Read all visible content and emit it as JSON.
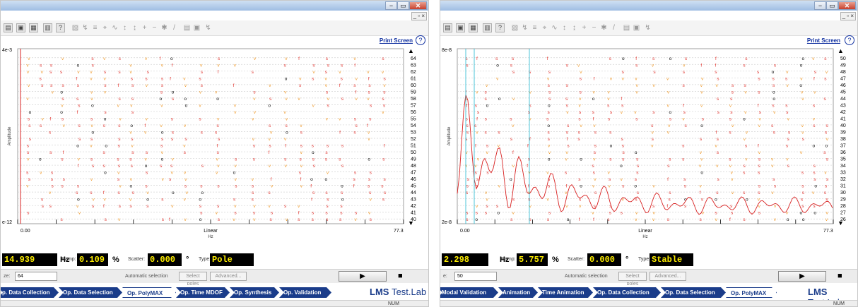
{
  "colors": {
    "stable": "#e0302a",
    "v": "#f09a2a",
    "o": "#000000",
    "fn_line": "#d82020",
    "cursor": "#20b8d0",
    "tab": "#1a3c8a",
    "accent": "#ffee00"
  },
  "left": {
    "window": {
      "minimize": "−",
      "maximize": "▭",
      "close": "✕",
      "mdi": "_ ▫ ×"
    },
    "toolbar": {
      "icons": [
        "open-icon",
        "print-preview-icon",
        "print-icon",
        "copy-icon",
        "help-icon"
      ],
      "disabled_icons": [
        "cursor-icon",
        "zoom-icon",
        "legend-icon",
        "measure-icon",
        "peak-icon",
        "marker-icon",
        "scale-icon",
        "plus-icon",
        "minus-icon",
        "star-icon",
        "line-icon",
        "table-icon",
        "save-icon",
        "flash-icon"
      ]
    },
    "print_screen": "Print Screen",
    "help": "?",
    "y_top": "4e-3",
    "y_bottom": "e-12",
    "y_axis_label": "Amplitude",
    "x_min": "0.00",
    "x_max": "77.3",
    "x_scale": "Linear",
    "x_unit": "Hz",
    "freq_value": "14.939",
    "freq_unit": "Hz",
    "damp_label": "Damp:",
    "damp_value": "0.109",
    "damp_unit": "%",
    "scatter_label": "Scatter:",
    "scatter_value": "0.000",
    "scatter_unit": "°",
    "type_label": "Type:",
    "type_value": "Pole",
    "size_label": "ze:",
    "size_value": "64",
    "auto_selection": "Automatic selection",
    "select_poles": "Select poles",
    "advanced": "Advanced...",
    "tabs": [
      {
        "label": "p. Data Collection"
      },
      {
        "label": "Op. Data Selection"
      },
      {
        "label": "Op. PolyMAX"
      },
      {
        "label": "Op. Time MDOF"
      },
      {
        "label": "Op. Synthesis"
      },
      {
        "label": "Op. Validation"
      }
    ],
    "active_tab": "Op. PolyMAX",
    "brand_bold": "LMS",
    "brand_rest": "Test.Lab",
    "status": "NUM",
    "orders": [
      64,
      63,
      62,
      61,
      60,
      59,
      58,
      57,
      56,
      55,
      54,
      53,
      52,
      51,
      50,
      49,
      48,
      47,
      46,
      45,
      44,
      43,
      42,
      41,
      40
    ]
  },
  "right": {
    "window": {
      "minimize": "−",
      "maximize": "▭",
      "close": "✕",
      "mdi": "_ ▫ ×"
    },
    "print_screen": "Print Screen",
    "help": "?",
    "y_top": "8e-8",
    "y_bottom": "2e-8",
    "y_axis_label": "Amplitude",
    "x_min": "0.00",
    "x_max": "77.3",
    "x_scale": "Linear",
    "x_unit": "Hz",
    "freq_value": "2.298",
    "freq_unit": "Hz",
    "damp_label": "Damp:",
    "damp_value": "5.757",
    "damp_unit": "%",
    "scatter_label": "Scatter:",
    "scatter_value": "0.000",
    "scatter_unit": "°",
    "type_label": "Type:",
    "type_value": "Stable",
    "size_label": "e:",
    "size_value": "50",
    "auto_selection": "Automatic selection",
    "select_poles": "Select poles",
    "advanced": "Advanced...",
    "tabs": [
      {
        "label": "Modal Validation"
      },
      {
        "label": "Animation"
      },
      {
        "label": "Time Animation"
      },
      {
        "label": "Op. Data Collection"
      },
      {
        "label": "Op. Data Selection"
      },
      {
        "label": "Op. PolyMAX"
      }
    ],
    "active_tab": "Op. PolyMAX",
    "brand_bold": "LMS",
    "brand_rest": "Test.Lab",
    "status": "NUM",
    "orders": [
      50,
      49,
      48,
      47,
      46,
      45,
      44,
      43,
      42,
      41,
      40,
      39,
      38,
      37,
      36,
      35,
      34,
      33,
      32,
      31,
      30,
      29,
      28,
      27,
      26
    ]
  }
}
